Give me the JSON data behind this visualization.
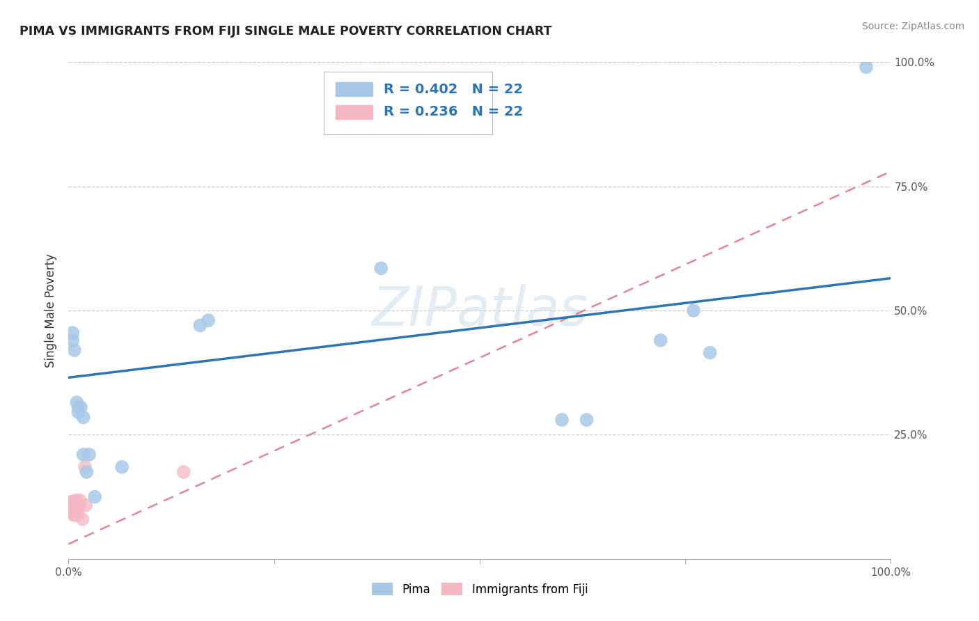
{
  "title": "PIMA VS IMMIGRANTS FROM FIJI SINGLE MALE POVERTY CORRELATION CHART",
  "source": "Source: ZipAtlas.com",
  "ylabel": "Single Male Poverty",
  "xlim": [
    0,
    1
  ],
  "ylim": [
    0,
    1
  ],
  "pima_color": "#a8c8e8",
  "fiji_color": "#f4b8c4",
  "pima_line_color": "#2e75b6",
  "fiji_line_color": "#e07888",
  "watermark_text": "ZIPatlas",
  "pima_points": [
    [
      0.005,
      0.44
    ],
    [
      0.005,
      0.455
    ],
    [
      0.007,
      0.42
    ],
    [
      0.01,
      0.315
    ],
    [
      0.012,
      0.305
    ],
    [
      0.012,
      0.295
    ],
    [
      0.015,
      0.305
    ],
    [
      0.018,
      0.285
    ],
    [
      0.018,
      0.21
    ],
    [
      0.022,
      0.175
    ],
    [
      0.025,
      0.21
    ],
    [
      0.032,
      0.125
    ],
    [
      0.065,
      0.185
    ],
    [
      0.16,
      0.47
    ],
    [
      0.17,
      0.48
    ],
    [
      0.38,
      0.585
    ],
    [
      0.6,
      0.28
    ],
    [
      0.63,
      0.28
    ],
    [
      0.72,
      0.44
    ],
    [
      0.76,
      0.5
    ],
    [
      0.78,
      0.415
    ],
    [
      0.97,
      0.99
    ]
  ],
  "fiji_points": [
    [
      0.003,
      0.105
    ],
    [
      0.003,
      0.115
    ],
    [
      0.003,
      0.095
    ],
    [
      0.004,
      0.108
    ],
    [
      0.004,
      0.095
    ],
    [
      0.005,
      0.105
    ],
    [
      0.005,
      0.115
    ],
    [
      0.006,
      0.098
    ],
    [
      0.006,
      0.088
    ],
    [
      0.006,
      0.105
    ],
    [
      0.007,
      0.09
    ],
    [
      0.008,
      0.098
    ],
    [
      0.008,
      0.108
    ],
    [
      0.009,
      0.118
    ],
    [
      0.01,
      0.098
    ],
    [
      0.011,
      0.088
    ],
    [
      0.014,
      0.118
    ],
    [
      0.014,
      0.108
    ],
    [
      0.02,
      0.185
    ],
    [
      0.021,
      0.108
    ],
    [
      0.14,
      0.175
    ],
    [
      0.017,
      0.08
    ]
  ],
  "background_color": "#ffffff",
  "grid_color": "#cccccc",
  "legend_text_color": "#2e75b6",
  "legend_r1": "R = 0.402",
  "legend_n1": "N = 22",
  "legend_r2": "R = 0.236",
  "legend_n2": "N = 22"
}
